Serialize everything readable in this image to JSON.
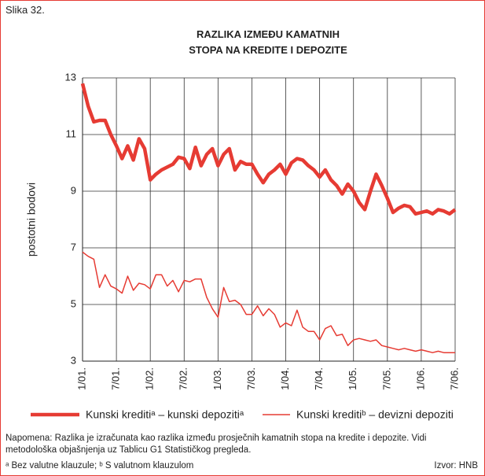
{
  "figure_label": "Slika 32.",
  "chart_data": {
    "type": "line",
    "title": [
      "RAZLIKA IZMEĐU KAMATNIH",
      "STOPA NA KREDITE I DEPOZITE"
    ],
    "ylabel": "postotni bodovi",
    "categories": [
      "1/01.",
      null,
      null,
      null,
      null,
      null,
      "7/01.",
      null,
      null,
      null,
      null,
      null,
      "1/02.",
      null,
      null,
      null,
      null,
      null,
      "7/02.",
      null,
      null,
      null,
      null,
      null,
      "1/03.",
      null,
      null,
      null,
      null,
      null,
      "7/03.",
      null,
      null,
      null,
      null,
      null,
      "1/04.",
      null,
      null,
      null,
      null,
      null,
      "7/04.",
      null,
      null,
      null,
      null,
      null,
      "1/05.",
      null,
      null,
      null,
      null,
      null,
      "7/05.",
      null,
      null,
      null,
      null,
      null,
      "1/06.",
      null,
      null,
      null,
      null,
      null,
      "7/06."
    ],
    "series": [
      {
        "name": "Kunski kreditiᵃ – kunski depozitiᵃ",
        "color": "#e63b33",
        "width": 4.5,
        "values": [
          12.8,
          12.0,
          11.45,
          11.5,
          11.5,
          11.0,
          10.6,
          10.15,
          10.6,
          10.1,
          10.85,
          10.5,
          9.4,
          9.6,
          9.75,
          9.85,
          9.95,
          10.2,
          10.15,
          9.8,
          10.55,
          9.9,
          10.3,
          10.5,
          9.9,
          10.3,
          10.5,
          9.75,
          10.05,
          9.95,
          9.95,
          9.6,
          9.3,
          9.6,
          9.75,
          9.95,
          9.6,
          10.0,
          10.15,
          10.1,
          9.9,
          9.75,
          9.5,
          9.75,
          9.4,
          9.2,
          8.9,
          9.25,
          9.0,
          8.6,
          8.35,
          9.0,
          9.6,
          9.2,
          8.75,
          8.25,
          8.4,
          8.5,
          8.45,
          8.2,
          8.25,
          8.3,
          8.2,
          8.35,
          8.3,
          8.2,
          8.35
        ]
      },
      {
        "name": "Kunski kreditiᵇ – devizni depoziti",
        "color": "#e63b33",
        "width": 1.5,
        "values": [
          6.85,
          6.7,
          6.6,
          5.6,
          6.05,
          5.65,
          5.55,
          5.4,
          6.0,
          5.5,
          5.75,
          5.7,
          5.55,
          6.05,
          6.05,
          5.65,
          5.85,
          5.45,
          5.85,
          5.8,
          5.9,
          5.9,
          5.25,
          4.85,
          4.55,
          5.6,
          5.1,
          5.15,
          5.0,
          4.65,
          4.65,
          4.95,
          4.6,
          4.85,
          4.65,
          4.2,
          4.35,
          4.25,
          4.8,
          4.2,
          4.05,
          4.05,
          3.75,
          4.15,
          4.25,
          3.9,
          3.95,
          3.55,
          3.75,
          3.8,
          3.75,
          3.7,
          3.75,
          3.55,
          3.5,
          3.45,
          3.4,
          3.45,
          3.4,
          3.35,
          3.4,
          3.35,
          3.3,
          3.35,
          3.3,
          3.3,
          3.3
        ]
      }
    ],
    "ylim": [
      3,
      13
    ],
    "yticks": [
      3,
      5,
      7,
      9,
      11,
      13
    ],
    "grid": true
  },
  "note": "Napomena: Razlika je izračunata kao razlika između prosječnih kamatnih stopa na kredite i depozite. Vidi metodološka objašnjenja uz Tablicu G1 Statističkog pregleda.",
  "footnote": "ᵃ Bez valutne klauzule; ᵇ S valutnom klauzulom",
  "source": "Izvor: HNB"
}
